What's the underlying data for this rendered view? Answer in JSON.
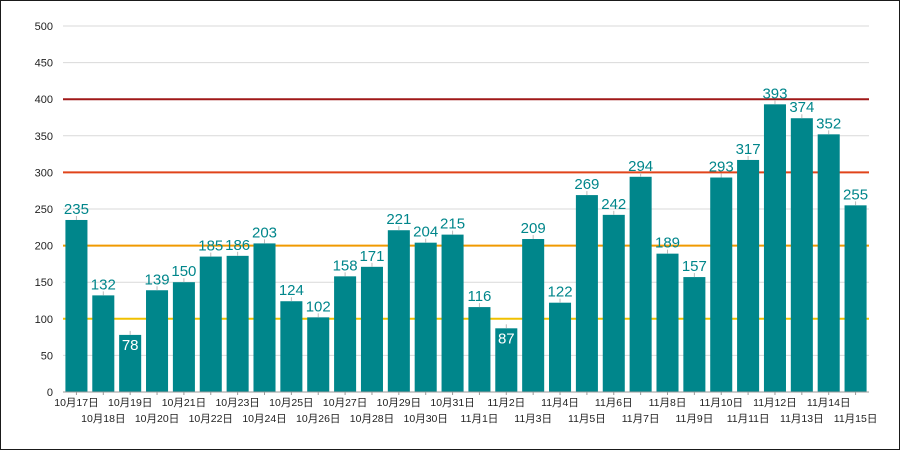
{
  "chart_data": {
    "type": "bar",
    "title": "",
    "xlabel": "",
    "ylabel": "",
    "ylim": [
      0,
      500
    ],
    "yticks": [
      0,
      50,
      100,
      150,
      200,
      250,
      300,
      350,
      400,
      450,
      500
    ],
    "grid": true,
    "legend": "none",
    "bar_color": "#00868b",
    "label_color": "#00868b",
    "categories": [
      "10月17日",
      "10月18日",
      "10月19日",
      "10月20日",
      "10月21日",
      "10月22日",
      "10月23日",
      "10月24日",
      "10月25日",
      "10月26日",
      "10月27日",
      "10月28日",
      "10月29日",
      "10月30日",
      "10月31日",
      "11月1日",
      "11月2日",
      "11月3日",
      "11月4日",
      "11月5日",
      "11月6日",
      "11月7日",
      "11月8日",
      "11月9日",
      "11月10日",
      "11月11日",
      "11月12日",
      "11月13日",
      "11月14日",
      "11月15日"
    ],
    "values": [
      235,
      132,
      78,
      139,
      150,
      185,
      186,
      203,
      124,
      102,
      158,
      171,
      221,
      204,
      215,
      116,
      87,
      209,
      122,
      269,
      242,
      294,
      189,
      157,
      293,
      317,
      393,
      374,
      352,
      255
    ],
    "reference_lines": [
      {
        "value": 100,
        "color": "#f0c000"
      },
      {
        "value": 200,
        "color": "#f09a00"
      },
      {
        "value": 300,
        "color": "#e0441a"
      },
      {
        "value": 400,
        "color": "#a01818"
      }
    ]
  }
}
